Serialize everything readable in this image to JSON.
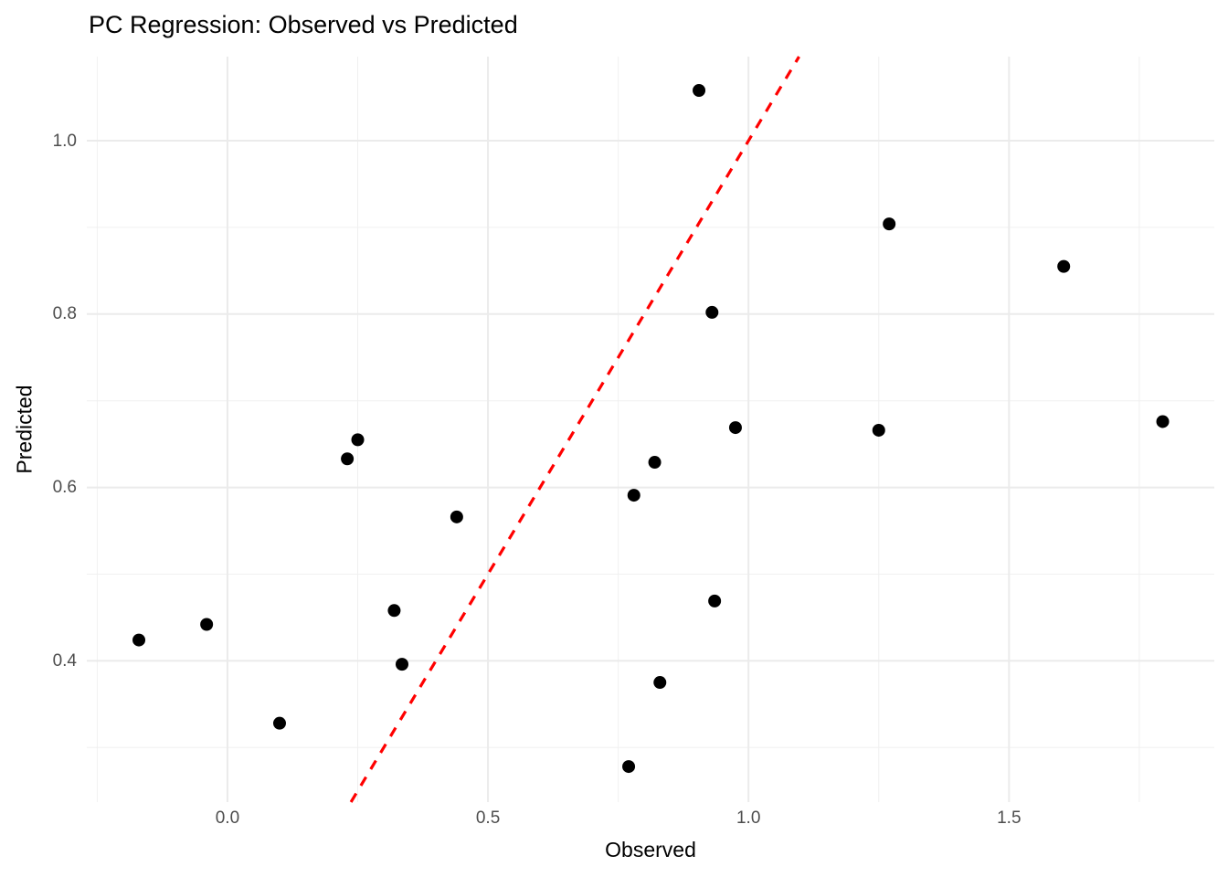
{
  "chart_data": {
    "type": "scatter",
    "title": "PC Regression: Observed vs Predicted",
    "xlabel": "Observed",
    "ylabel": "Predicted",
    "xlim": [
      -0.27,
      1.894
    ],
    "ylim": [
      0.237,
      1.097
    ],
    "x_major_ticks": [
      0.0,
      0.5,
      1.0,
      1.5
    ],
    "x_tick_labels": [
      "0.0",
      "0.5",
      "1.0",
      "1.5"
    ],
    "y_major_ticks": [
      0.4,
      0.6,
      0.8,
      1.0
    ],
    "y_tick_labels": [
      "0.4",
      "0.6",
      "0.8",
      "1.0"
    ],
    "x_minor_ticks": [
      -0.25,
      0.25,
      0.75,
      1.25,
      1.75
    ],
    "y_minor_ticks": [
      0.3,
      0.5,
      0.7,
      0.9
    ],
    "grid": true,
    "legend": "none",
    "points": [
      [
        -0.17,
        0.424
      ],
      [
        -0.04,
        0.442
      ],
      [
        0.1,
        0.328
      ],
      [
        0.23,
        0.633
      ],
      [
        0.25,
        0.655
      ],
      [
        0.32,
        0.458
      ],
      [
        0.335,
        0.396
      ],
      [
        0.44,
        0.566
      ],
      [
        0.77,
        0.278
      ],
      [
        0.78,
        0.591
      ],
      [
        0.82,
        0.629
      ],
      [
        0.83,
        0.375
      ],
      [
        0.905,
        1.058
      ],
      [
        0.93,
        0.802
      ],
      [
        0.935,
        0.469
      ],
      [
        0.975,
        0.669
      ],
      [
        1.25,
        0.666
      ],
      [
        1.27,
        0.904
      ],
      [
        1.605,
        0.855
      ],
      [
        1.795,
        0.676
      ]
    ],
    "reference_line": {
      "type": "identity",
      "slope": 1,
      "intercept": 0,
      "style": "dashed",
      "color": "#FF0000"
    },
    "colors": {
      "point": "#000000",
      "grid_major": "#EBEBEB",
      "grid_minor": "#F0F0F0",
      "tick_text": "#4D4D4D",
      "title_text": "#000000",
      "background": "#FFFFFF"
    }
  }
}
